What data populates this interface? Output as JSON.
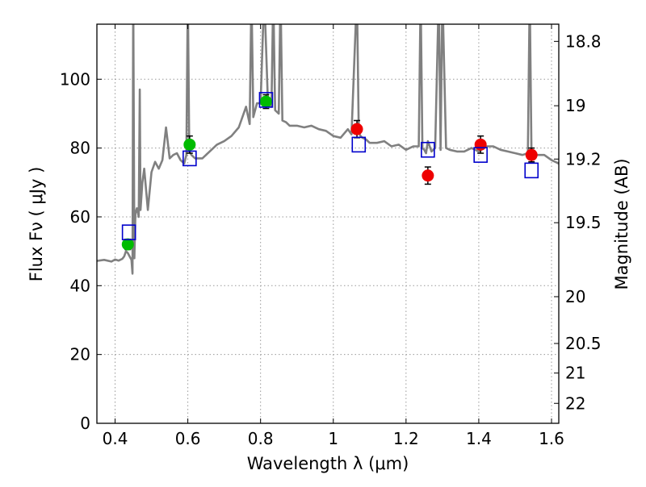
{
  "chart_data": {
    "type": "scatter",
    "title": "",
    "xlabel": "Wavelength  λ (μm)",
    "ylabel": "Flux  Fν  ( μJy )",
    "ylabel_right": "Magnitude (AB)",
    "xlim": [
      0.35,
      1.62
    ],
    "ylim": [
      0,
      116
    ],
    "grid": true,
    "x_ticks": [
      0.4,
      0.6,
      0.8,
      1.0,
      1.2,
      1.4,
      1.6
    ],
    "x_tick_labels": [
      "0.4",
      "0.6",
      "0.8",
      "1",
      "1.2",
      "1.4",
      "1.6"
    ],
    "y_ticks": [
      0,
      20,
      40,
      60,
      80,
      100
    ],
    "y_tick_labels": [
      "0",
      "20",
      "40",
      "60",
      "80",
      "100"
    ],
    "right_ticks": [
      {
        "label": "18.8",
        "flux": 111.0
      },
      {
        "label": "19",
        "flux": 92.3
      },
      {
        "label": "19.2",
        "flux": 76.8
      },
      {
        "label": "19.5",
        "flux": 58.3
      },
      {
        "label": "20",
        "flux": 36.8
      },
      {
        "label": "20.5",
        "flux": 23.2
      },
      {
        "label": "21",
        "flux": 14.6
      },
      {
        "label": "22",
        "flux": 5.8
      }
    ],
    "colors": {
      "spectrum": "#808080",
      "green": "#00bb00",
      "red": "#ee0000",
      "model_box": "#0000cc",
      "grid": "#999999"
    },
    "series": [
      {
        "kind": "line",
        "x": [
          0.35,
          0.37,
          0.39,
          0.4,
          0.41,
          0.42,
          0.425,
          0.43,
          0.435,
          0.44,
          0.445,
          0.448,
          0.45,
          0.453,
          0.456,
          0.46,
          0.465,
          0.468,
          0.47,
          0.475,
          0.48,
          0.49,
          0.5,
          0.51,
          0.52,
          0.53,
          0.54,
          0.55,
          0.56,
          0.57,
          0.58,
          0.59,
          0.596,
          0.6,
          0.604,
          0.61,
          0.62,
          0.64,
          0.66,
          0.68,
          0.7,
          0.72,
          0.74,
          0.76,
          0.77,
          0.775,
          0.78,
          0.79,
          0.8,
          0.81,
          0.82,
          0.83,
          0.835,
          0.84,
          0.85,
          0.855,
          0.86,
          0.87,
          0.88,
          0.9,
          0.92,
          0.94,
          0.96,
          0.98,
          1.0,
          1.02,
          1.04,
          1.05,
          1.065,
          1.07,
          1.075,
          1.08,
          1.09,
          1.1,
          1.12,
          1.14,
          1.16,
          1.18,
          1.2,
          1.22,
          1.235,
          1.24,
          1.245,
          1.25,
          1.255,
          1.26,
          1.27,
          1.28,
          1.29,
          1.295,
          1.3,
          1.31,
          1.32,
          1.34,
          1.36,
          1.38,
          1.4,
          1.42,
          1.44,
          1.46,
          1.48,
          1.5,
          1.52,
          1.535,
          1.54,
          1.545,
          1.55,
          1.56,
          1.58,
          1.6,
          1.62
        ],
        "y": [
          47.2,
          47.5,
          47.0,
          47.6,
          47.3,
          47.8,
          48.5,
          50.0,
          49.5,
          48.5,
          47.5,
          43.5,
          125,
          48.0,
          61.0,
          62.5,
          60.0,
          97.0,
          62.0,
          70.0,
          74.0,
          62.0,
          73.0,
          76.0,
          74.0,
          76.5,
          86.0,
          77.0,
          78.0,
          78.5,
          76.5,
          75.5,
          78.0,
          125,
          79.0,
          78.0,
          77.0,
          77.0,
          79.0,
          81.0,
          82.0,
          83.5,
          86.0,
          92.0,
          87.0,
          125,
          89.0,
          93.0,
          93.0,
          125,
          94.0,
          92.0,
          125,
          91.0,
          90.0,
          125,
          88.0,
          87.5,
          86.5,
          86.5,
          86.0,
          86.5,
          85.5,
          85.0,
          83.5,
          83.0,
          85.5,
          84.0,
          125,
          84.5,
          83.5,
          83.0,
          82.5,
          81.5,
          81.5,
          82.0,
          80.5,
          81.0,
          79.5,
          80.5,
          80.5,
          125,
          80.0,
          79.5,
          78.5,
          82.0,
          79.0,
          80.0,
          125,
          79.5,
          125,
          80.0,
          79.5,
          79.0,
          79.0,
          80.0,
          79.0,
          80.5,
          80.5,
          79.5,
          79.0,
          78.5,
          78.0,
          78.5,
          125,
          78.0,
          78.0,
          78.0,
          78.0,
          76.5,
          75.5
        ]
      },
      {
        "kind": "points",
        "color": "green",
        "x": [
          0.435,
          0.605,
          0.815
        ],
        "y": [
          52.0,
          81.0,
          93.5
        ],
        "err": [
          1.5,
          2.5,
          2.0
        ]
      },
      {
        "kind": "points",
        "color": "red",
        "x": [
          1.065,
          1.26,
          1.405,
          1.545
        ],
        "y": [
          85.5,
          72.0,
          81.0,
          78.0
        ],
        "err": [
          2.5,
          2.5,
          2.5,
          2.0
        ]
      },
      {
        "kind": "squares",
        "color": "model_box",
        "x": [
          0.438,
          0.605,
          0.815,
          1.07,
          1.26,
          1.405,
          1.545
        ],
        "y": [
          55.5,
          77.0,
          94.0,
          81.0,
          79.5,
          78.0,
          73.5
        ]
      }
    ]
  }
}
